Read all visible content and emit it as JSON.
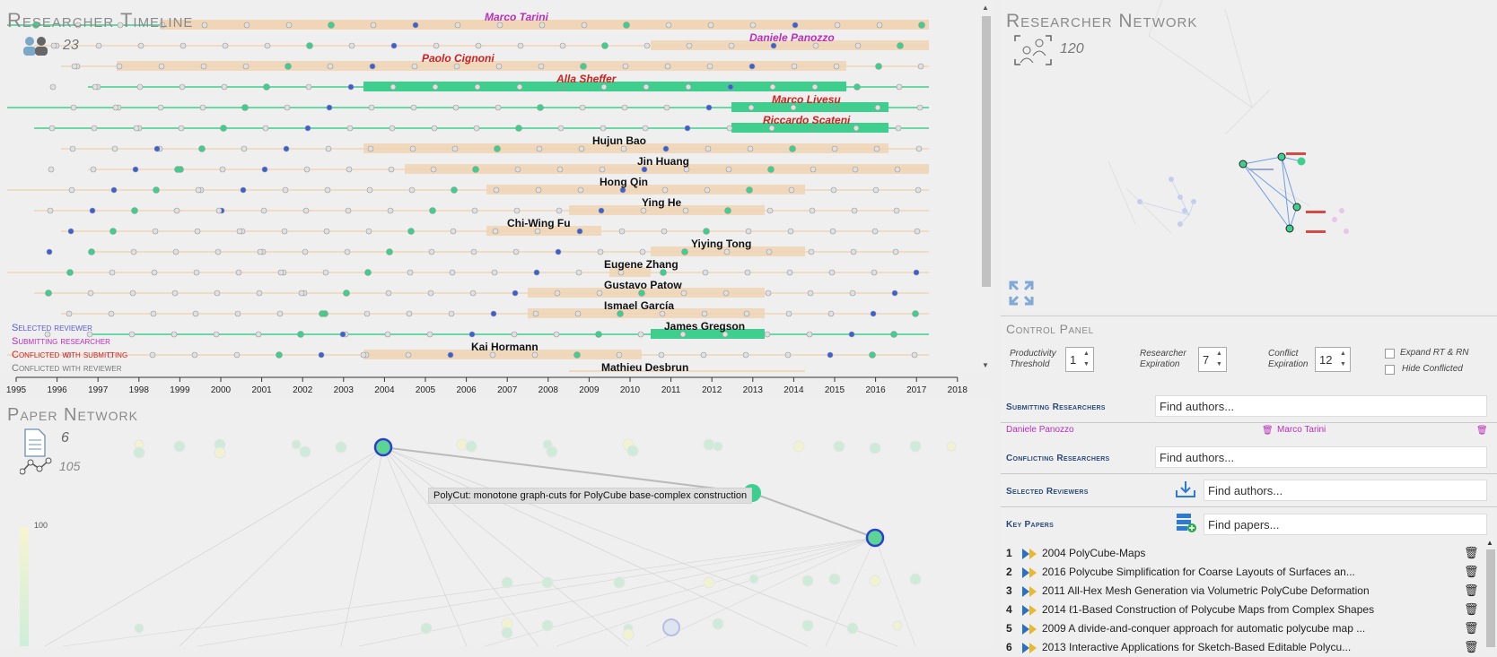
{
  "timeline": {
    "title": "Researcher Timeline",
    "researcher_count": "23",
    "years": [
      "1995",
      "1996",
      "1997",
      "1998",
      "1999",
      "2000",
      "2001",
      "2002",
      "2003",
      "2004",
      "2005",
      "2006",
      "2007",
      "2008",
      "2009",
      "2010",
      "2011",
      "2012",
      "2013",
      "2014",
      "2015",
      "2016",
      "2017",
      "2018"
    ],
    "researchers": [
      {
        "name": "Marco Tarini",
        "role": "submitting"
      },
      {
        "name": "Daniele Panozzo",
        "role": "submitting"
      },
      {
        "name": "Paolo Cignoni",
        "role": "conflicted"
      },
      {
        "name": "Alla Sheffer",
        "role": "conflicted"
      },
      {
        "name": "Marco Livesu",
        "role": "conflicted"
      },
      {
        "name": "Riccardo Scateni",
        "role": "conflicted"
      },
      {
        "name": "Hujun Bao",
        "role": "normal"
      },
      {
        "name": "Jin Huang",
        "role": "normal"
      },
      {
        "name": "Hong Qin",
        "role": "normal"
      },
      {
        "name": "Ying He",
        "role": "normal"
      },
      {
        "name": "Chi-Wing Fu",
        "role": "normal"
      },
      {
        "name": "Yiying Tong",
        "role": "normal"
      },
      {
        "name": "Eugene Zhang",
        "role": "normal"
      },
      {
        "name": "Gustavo Patow",
        "role": "normal"
      },
      {
        "name": "Ismael García",
        "role": "normal"
      },
      {
        "name": "James Gregson",
        "role": "normal"
      },
      {
        "name": "Kai Hormann",
        "role": "normal"
      },
      {
        "name": "Mathieu Desbrun",
        "role": "normal"
      }
    ],
    "legend": {
      "selected": "Selected reviewer",
      "submitting": "Submitting researcher",
      "conflicted_sub": "Conflicted with submitting",
      "conflicted_rev": "Conflicted with reviewer"
    },
    "colors": {
      "submitting": "#b92fb9",
      "conflicted": "#d0201b",
      "selected": "#5a5ad6",
      "band": "#f0d5b6",
      "band_green": "#3ecf8e"
    }
  },
  "paper_network": {
    "title": "Paper Network",
    "paper_count": "6",
    "link_count": "105",
    "tooltip": "PolyCut: monotone graph-cuts for PolyCube base-complex construction",
    "scale_max": "100"
  },
  "researcher_network": {
    "title": "Researcher Network",
    "count": "120"
  },
  "control_panel": {
    "title": "Control Panel",
    "productivity_label": "Productivity Threshold",
    "productivity_value": "1",
    "expiration_label": "Researcher Expiration",
    "expiration_value": "7",
    "conflict_label": "Conflict Expiration",
    "conflict_value": "12",
    "expand_label": "Expand RT & RN",
    "hide_label": "Hide Conflicted",
    "submitting_label": "Submitting Researchers",
    "submitting_placeholder": "Find authors...",
    "submitting_chips": [
      "Daniele Panozzo",
      "Marco Tarini"
    ],
    "conflicting_label": "Conflicting Researchers",
    "conflicting_placeholder": "Find authors...",
    "reviewers_label": "Selected Reviewers",
    "reviewers_placeholder": "Find authors...",
    "keypapers_label": "Key Papers",
    "keypapers_placeholder": "Find papers...",
    "key_papers": [
      {
        "num": "1",
        "title": "2004 PolyCube-Maps"
      },
      {
        "num": "2",
        "title": "2016 Polycube Simplification for Coarse Layouts of Surfaces an..."
      },
      {
        "num": "3",
        "title": "2011 All-Hex Mesh Generation via Volumetric PolyCube Deformation"
      },
      {
        "num": "4",
        "title": "2014 ℓ1-Based Construction of Polycube Maps from Complex Shapes"
      },
      {
        "num": "5",
        "title": "2009 A divide-and-conquer approach for automatic polycube map ..."
      },
      {
        "num": "6",
        "title": "2013 Interactive Applications for Sketch-Based Editable Polycu..."
      }
    ]
  }
}
